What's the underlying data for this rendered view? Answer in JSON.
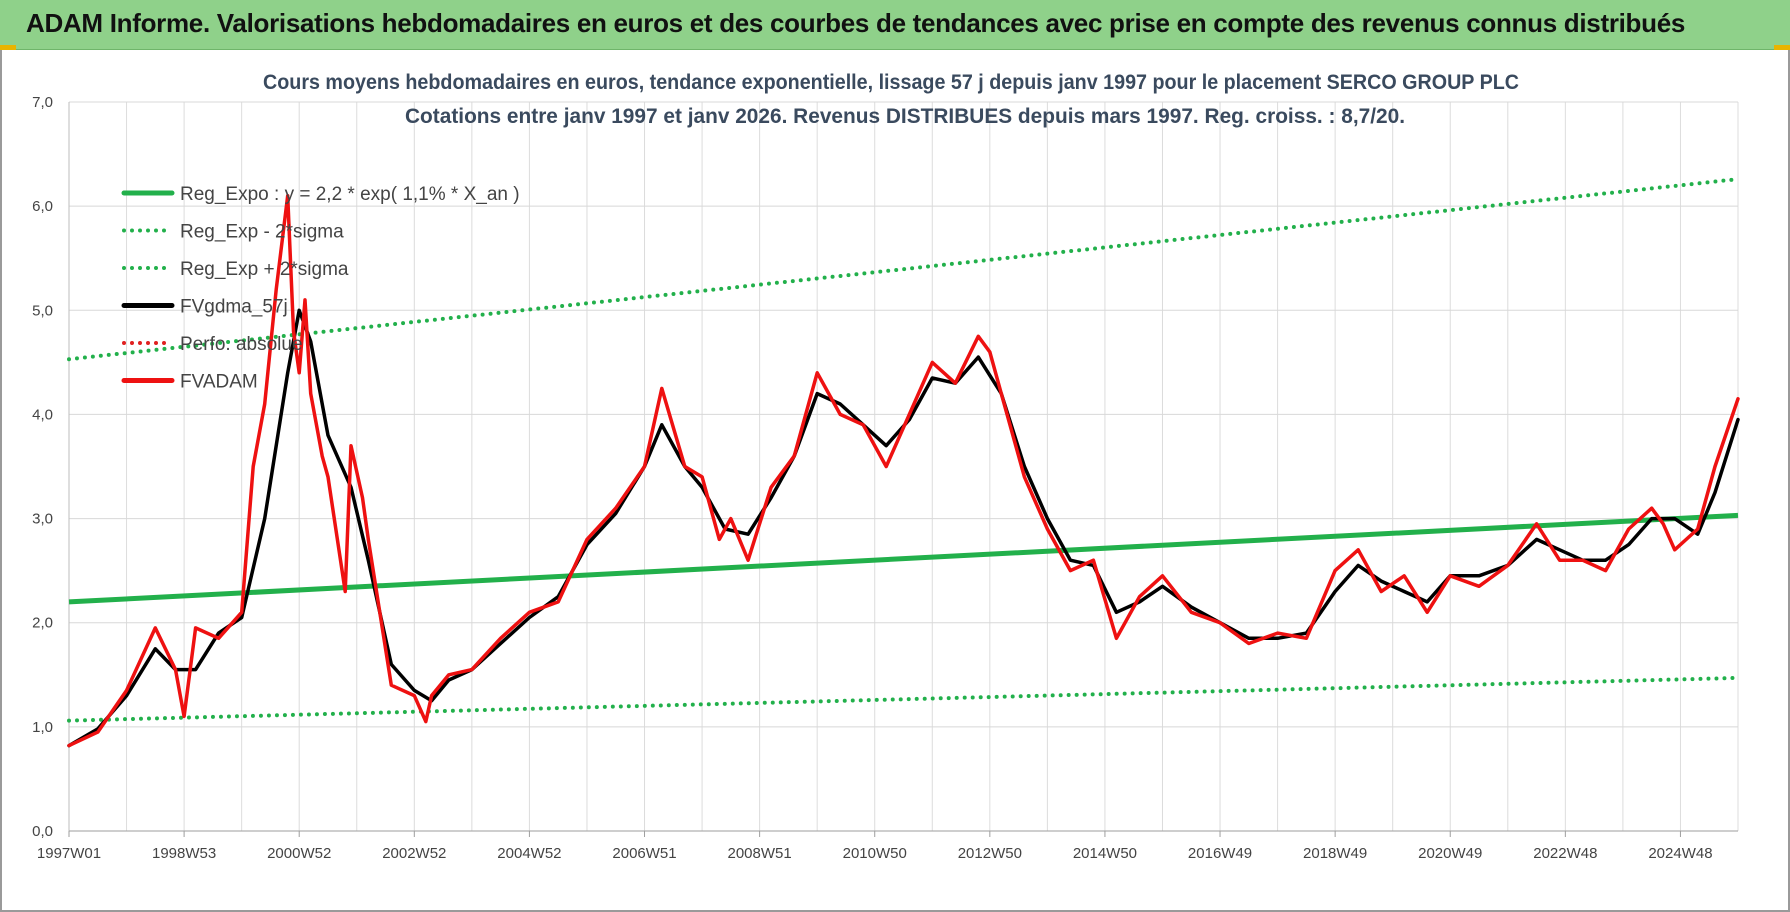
{
  "banner": {
    "title": "ADAM Informe. Valorisations hebdomadaires en euros et des courbes de tendances avec prise en compte des revenus connus distribués"
  },
  "chart_data": {
    "type": "line",
    "title": "Cours moyens hebdomadaires en euros, tendance exponentielle, lissage 57 j depuis janv 1997  pour le placement SERCO GROUP PLC",
    "subtitle": "Cotations entre janv 1997 et janv 2026. Revenus DISTRIBUES depuis mars 1997.  Reg. croiss. : 8,7/20.",
    "xlabel": "",
    "ylabel": "",
    "ylim": [
      0,
      7
    ],
    "xlim": [
      1997.0,
      2026.0
    ],
    "yticks": [
      "0,0",
      "1,0",
      "2,0",
      "3,0",
      "4,0",
      "5,0",
      "6,0",
      "7,0"
    ],
    "xticks": [
      {
        "label": "1997W01",
        "x": 1997.0
      },
      {
        "label": "1998W53",
        "x": 1999.0
      },
      {
        "label": "2000W52",
        "x": 2001.0
      },
      {
        "label": "2002W52",
        "x": 2003.0
      },
      {
        "label": "2004W52",
        "x": 2005.0
      },
      {
        "label": "2006W51",
        "x": 2007.0
      },
      {
        "label": "2008W51",
        "x": 2009.0
      },
      {
        "label": "2010W50",
        "x": 2011.0
      },
      {
        "label": "2012W50",
        "x": 2013.0
      },
      {
        "label": "2014W50",
        "x": 2015.0
      },
      {
        "label": "2016W49",
        "x": 2017.0
      },
      {
        "label": "2018W49",
        "x": 2019.0
      },
      {
        "label": "2020W49",
        "x": 2021.0
      },
      {
        "label": "2022W48",
        "x": 2023.0
      },
      {
        "label": "2024W48",
        "x": 2025.0
      }
    ],
    "grid": true,
    "legend_position": "top-left",
    "legend": [
      {
        "label": "Reg_Expo : y = 2,2 * exp( 1,1% *  X_an )",
        "color": "#22b04b",
        "style": "solid"
      },
      {
        "label": "Reg_Exp - 2*sigma",
        "color": "#22b04b",
        "style": "dotted"
      },
      {
        "label": "Reg_Exp + 2*sigma",
        "color": "#22b04b",
        "style": "dotted"
      },
      {
        "label": "FVgdma_57j",
        "color": "#000000",
        "style": "solid"
      },
      {
        "label": "Perfo. absolue",
        "color": "#e02020",
        "style": "dotted"
      },
      {
        "label": "FVADAM",
        "color": "#ee1111",
        "style": "solid"
      }
    ],
    "series": [
      {
        "name": "Reg_Expo : y = 2,2 * exp( 1,1% *  X_an )",
        "color": "#22b04b",
        "x": [
          1997.0,
          2026.0
        ],
        "y": [
          2.2,
          3.03
        ]
      },
      {
        "name": "Reg_Exp - 2*sigma",
        "color": "#22b04b",
        "x": [
          1997.0,
          2026.0
        ],
        "y": [
          1.06,
          1.47
        ]
      },
      {
        "name": "Reg_Exp + 2*sigma",
        "color": "#22b04b",
        "x": [
          1997.0,
          2026.0
        ],
        "y": [
          4.53,
          6.26
        ]
      },
      {
        "name": "FVgdma_57j",
        "color": "#000000",
        "x": [
          1997.0,
          1997.5,
          1998.0,
          1998.5,
          1998.85,
          1999.2,
          1999.6,
          2000.0,
          2000.4,
          2000.8,
          2001.0,
          2001.2,
          2001.5,
          2001.9,
          2002.2,
          2002.6,
          2003.0,
          2003.3,
          2003.6,
          2004.0,
          2004.5,
          2005.0,
          2005.5,
          2006.0,
          2006.5,
          2007.0,
          2007.3,
          2007.7,
          2008.0,
          2008.4,
          2008.8,
          2009.2,
          2009.6,
          2010.0,
          2010.4,
          2010.8,
          2011.2,
          2011.6,
          2012.0,
          2012.4,
          2012.8,
          2013.2,
          2013.6,
          2014.0,
          2014.4,
          2014.8,
          2015.2,
          2015.6,
          2016.0,
          2016.5,
          2017.0,
          2017.5,
          2018.0,
          2018.5,
          2019.0,
          2019.4,
          2019.8,
          2020.2,
          2020.6,
          2021.0,
          2021.5,
          2022.0,
          2022.5,
          2022.9,
          2023.3,
          2023.7,
          2024.1,
          2024.5,
          2024.9,
          2025.3,
          2025.6,
          2026.0
        ],
        "y": [
          0.82,
          0.98,
          1.3,
          1.75,
          1.55,
          1.55,
          1.9,
          2.05,
          3.0,
          4.4,
          5.0,
          4.7,
          3.8,
          3.3,
          2.6,
          1.6,
          1.35,
          1.25,
          1.45,
          1.55,
          1.8,
          2.05,
          2.25,
          2.75,
          3.05,
          3.5,
          3.9,
          3.5,
          3.3,
          2.9,
          2.85,
          3.2,
          3.6,
          4.2,
          4.1,
          3.9,
          3.7,
          3.95,
          4.35,
          4.3,
          4.55,
          4.2,
          3.5,
          3.0,
          2.6,
          2.55,
          2.1,
          2.2,
          2.35,
          2.15,
          2.0,
          1.85,
          1.85,
          1.9,
          2.3,
          2.55,
          2.4,
          2.3,
          2.2,
          2.45,
          2.45,
          2.55,
          2.8,
          2.7,
          2.6,
          2.6,
          2.75,
          3.0,
          3.0,
          2.85,
          3.25,
          3.95
        ]
      },
      {
        "name": "FVADAM",
        "color": "#ee1111",
        "x": [
          1997.0,
          1997.5,
          1998.0,
          1998.5,
          1998.85,
          1999.0,
          1999.2,
          1999.6,
          2000.0,
          2000.2,
          2000.4,
          2000.6,
          2000.8,
          2000.9,
          2001.0,
          2001.1,
          2001.2,
          2001.4,
          2001.5,
          2001.8,
          2001.9,
          2002.1,
          2002.2,
          2002.6,
          2003.0,
          2003.2,
          2003.3,
          2003.6,
          2004.0,
          2004.5,
          2005.0,
          2005.5,
          2006.0,
          2006.5,
          2007.0,
          2007.3,
          2007.7,
          2008.0,
          2008.3,
          2008.5,
          2008.8,
          2009.2,
          2009.6,
          2010.0,
          2010.4,
          2010.8,
          2011.2,
          2011.6,
          2012.0,
          2012.4,
          2012.8,
          2013.0,
          2013.2,
          2013.6,
          2014.0,
          2014.4,
          2014.8,
          2015.2,
          2015.6,
          2016.0,
          2016.5,
          2017.0,
          2017.5,
          2018.0,
          2018.5,
          2019.0,
          2019.4,
          2019.8,
          2020.2,
          2020.6,
          2021.0,
          2021.5,
          2022.0,
          2022.5,
          2022.9,
          2023.3,
          2023.7,
          2024.1,
          2024.5,
          2024.7,
          2024.9,
          2025.3,
          2025.6,
          2026.0
        ],
        "y": [
          0.82,
          0.95,
          1.35,
          1.95,
          1.55,
          1.1,
          1.95,
          1.85,
          2.1,
          3.5,
          4.1,
          5.2,
          6.1,
          4.8,
          4.4,
          5.1,
          4.2,
          3.6,
          3.4,
          2.3,
          3.7,
          3.2,
          2.8,
          1.4,
          1.3,
          1.05,
          1.3,
          1.5,
          1.55,
          1.85,
          2.1,
          2.2,
          2.8,
          3.1,
          3.5,
          4.25,
          3.5,
          3.4,
          2.8,
          3.0,
          2.6,
          3.3,
          3.6,
          4.4,
          4.0,
          3.9,
          3.5,
          4.0,
          4.5,
          4.3,
          4.75,
          4.6,
          4.2,
          3.4,
          2.9,
          2.5,
          2.6,
          1.85,
          2.25,
          2.45,
          2.1,
          2.0,
          1.8,
          1.9,
          1.85,
          2.5,
          2.7,
          2.3,
          2.45,
          2.1,
          2.45,
          2.35,
          2.55,
          2.95,
          2.6,
          2.6,
          2.5,
          2.9,
          3.1,
          2.95,
          2.7,
          2.9,
          3.5,
          4.15
        ]
      }
    ]
  }
}
